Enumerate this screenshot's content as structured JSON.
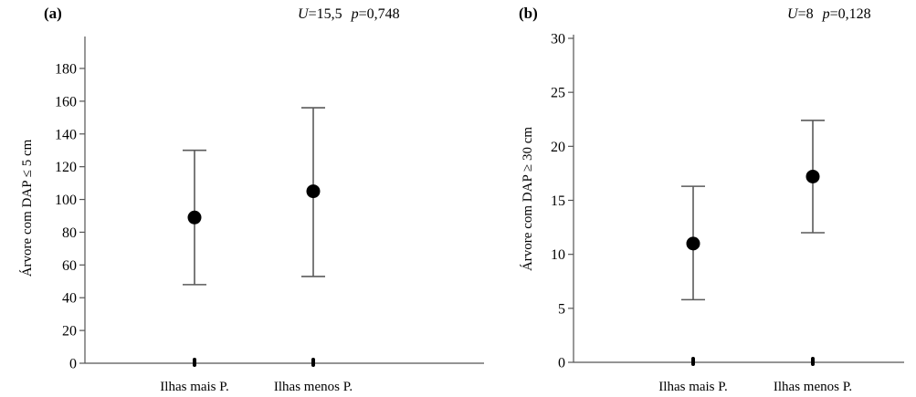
{
  "chart_data": [
    {
      "type": "scatter",
      "panel_label": "(a)",
      "stats": {
        "U_label": "U",
        "U_value": "=15,5",
        "p_label": "p",
        "p_value": "=0,748"
      },
      "ylabel": "Árvore com DAP ≤ 5 cm",
      "ylim": [
        0,
        180
      ],
      "yticks": [
        0,
        20,
        40,
        60,
        80,
        100,
        120,
        140,
        160,
        180
      ],
      "categories": [
        "Ilhas mais P.",
        "Ilhas menos P."
      ],
      "means": [
        89,
        105
      ],
      "lower": [
        48,
        53
      ],
      "upper": [
        130,
        156
      ]
    },
    {
      "type": "scatter",
      "panel_label": "(b)",
      "stats": {
        "U_label": "U",
        "U_value": "=8",
        "p_label": "p",
        "p_value": "=0,128"
      },
      "ylabel": "Árvore com DAP ≥ 30 cm",
      "ylim": [
        0,
        30
      ],
      "yticks": [
        0,
        5,
        10,
        15,
        20,
        25,
        30
      ],
      "categories": [
        "Ilhas mais P.",
        "Ilhas menos P."
      ],
      "means": [
        11,
        17.2
      ],
      "lower": [
        5.8,
        12
      ],
      "upper": [
        16.3,
        22.4
      ]
    }
  ]
}
